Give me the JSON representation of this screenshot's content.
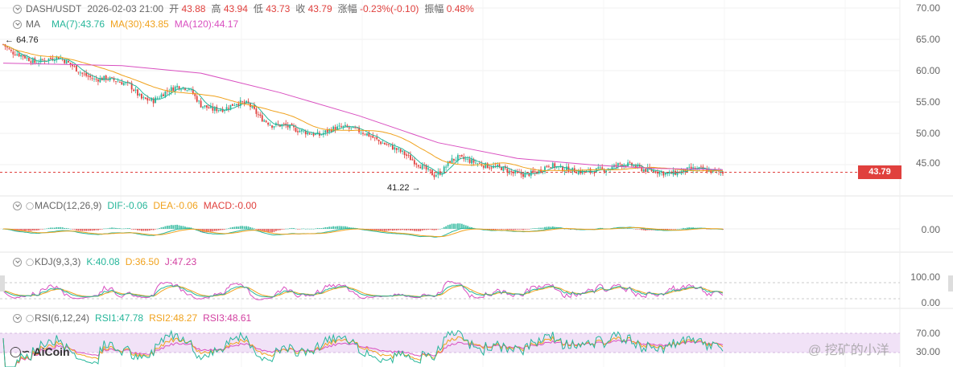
{
  "header": {
    "pair": "DASH/USDT",
    "datetime": "2026-02-03 21:00",
    "open_label": "开",
    "open_value": "43.88",
    "high_label": "高",
    "high_value": "43.94",
    "low_label": "低",
    "low_value": "43.73",
    "close_label": "收",
    "close_value": "43.79",
    "change_label": "涨幅",
    "change_value": "-0.23%(-0.10)",
    "amp_label": "振幅",
    "amp_value": "0.48%"
  },
  "ma_legend": {
    "name": "MA",
    "ma7": "MA(7):43.76",
    "ma30": "MA(30):43.85",
    "ma120": "MA(120):44.17"
  },
  "macd_legend": {
    "name": "MACD(12,26,9)",
    "dif": "DIF:-0.06",
    "dea": "DEA:-0.06",
    "macd": "MACD:-0.00"
  },
  "kdj_legend": {
    "name": "KDJ(9,3,3)",
    "k": "K:40.08",
    "d": "D:36.50",
    "j": "J:47.23"
  },
  "rsi_legend": {
    "name": "RSI(6,12,24)",
    "rsi1": "RSI1:47.78",
    "rsi2": "RSI2:48.27",
    "rsi3": "RSI3:48.61"
  },
  "annotations": {
    "high_marker": "64.76",
    "low_marker": "41.22",
    "current_price": "43.79"
  },
  "axes": {
    "price_ticks": [
      "70.00",
      "65.00",
      "60.00",
      "55.00",
      "50.00",
      "45.00"
    ],
    "macd_ticks": [
      "0.00"
    ],
    "kdj_ticks": [
      "100.00",
      "0.00"
    ],
    "rsi_ticks": [
      "70.00",
      "30.00"
    ]
  },
  "branding": {
    "logo": "AiCoin",
    "watermark": "@ 挖矿的小洋"
  },
  "colors": {
    "up": "#26b69a",
    "down": "#e0403d",
    "ma7": "#26b69a",
    "ma30": "#f0a21d",
    "ma120": "#d94fc0",
    "grid": "#f0f0f0"
  },
  "chart_data": {
    "type": "candlestick",
    "symbol": "DASH/USDT",
    "price_axis": {
      "ylim": [
        40,
        70
      ],
      "ticks": [
        70,
        65,
        60,
        55,
        50,
        45
      ]
    },
    "current_price": 43.79,
    "period_high": 64.76,
    "period_low": 41.22,
    "price_path": [
      [
        0,
        64.2
      ],
      [
        4,
        63.0
      ],
      [
        10,
        62.4
      ],
      [
        16,
        61.3
      ],
      [
        22,
        61.8
      ],
      [
        28,
        62.2
      ],
      [
        34,
        61.0
      ],
      [
        40,
        59.5
      ],
      [
        46,
        58.6
      ],
      [
        52,
        58.8
      ],
      [
        58,
        58.3
      ],
      [
        64,
        57.7
      ],
      [
        70,
        55.5
      ],
      [
        76,
        55.2
      ],
      [
        82,
        56.6
      ],
      [
        88,
        57.5
      ],
      [
        94,
        57.2
      ],
      [
        100,
        54.5
      ],
      [
        106,
        53.8
      ],
      [
        112,
        53.9
      ],
      [
        118,
        54.9
      ],
      [
        124,
        54.7
      ],
      [
        130,
        52.5
      ],
      [
        136,
        51.3
      ],
      [
        142,
        51.3
      ],
      [
        148,
        50.6
      ],
      [
        154,
        50.1
      ],
      [
        160,
        49.7
      ],
      [
        166,
        50.7
      ],
      [
        172,
        51.0
      ],
      [
        178,
        50.6
      ],
      [
        184,
        49.9
      ],
      [
        190,
        48.7
      ],
      [
        196,
        47.9
      ],
      [
        202,
        46.9
      ],
      [
        208,
        45.5
      ],
      [
        214,
        44.2
      ],
      [
        218,
        43.3
      ],
      [
        222,
        43.9
      ],
      [
        226,
        45.6
      ],
      [
        230,
        46.1
      ],
      [
        234,
        45.8
      ],
      [
        240,
        45.2
      ],
      [
        246,
        44.7
      ],
      [
        252,
        44.5
      ],
      [
        258,
        43.6
      ],
      [
        264,
        43.4
      ],
      [
        270,
        43.8
      ],
      [
        276,
        45.0
      ],
      [
        282,
        44.4
      ],
      [
        288,
        44.1
      ],
      [
        294,
        43.8
      ],
      [
        300,
        44.1
      ],
      [
        306,
        44.3
      ],
      [
        312,
        45.1
      ],
      [
        318,
        44.9
      ],
      [
        324,
        44.2
      ],
      [
        330,
        44.0
      ],
      [
        336,
        43.5
      ],
      [
        342,
        43.8
      ],
      [
        348,
        44.3
      ],
      [
        354,
        44.2
      ],
      [
        360,
        43.9
      ],
      [
        364,
        43.8
      ]
    ],
    "ma_lines": [
      {
        "name": "MA(7)",
        "value": 43.76
      },
      {
        "name": "MA(30)",
        "value": 43.85
      },
      {
        "name": "MA(120)",
        "value": 44.17,
        "path": [
          [
            0,
            61.2
          ],
          [
            60,
            60.8
          ],
          [
            100,
            59.6
          ],
          [
            140,
            56.5
          ],
          [
            180,
            52.8
          ],
          [
            220,
            48.5
          ],
          [
            260,
            46.0
          ],
          [
            300,
            44.9
          ],
          [
            330,
            44.4
          ],
          [
            364,
            44.2
          ]
        ]
      }
    ],
    "indicators": {
      "MACD": {
        "params": "12,26,9",
        "DIF": -0.06,
        "DEA": -0.06,
        "MACD": -0.0
      },
      "KDJ": {
        "params": "9,3,3",
        "K": 40.08,
        "D": 36.5,
        "J": 47.23,
        "ticks": [
          100,
          0
        ]
      },
      "RSI": {
        "params": "6,12,24",
        "RSI1": 47.78,
        "RSI2": 48.27,
        "RSI3": 48.61,
        "ticks": [
          70,
          30
        ]
      }
    }
  }
}
